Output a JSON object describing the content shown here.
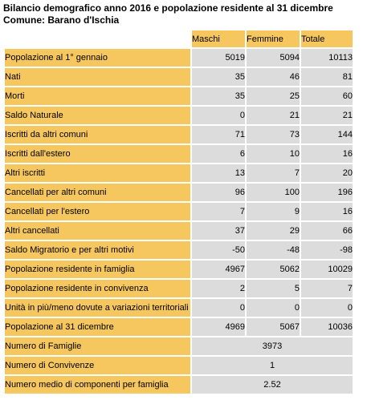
{
  "title": {
    "line1": "Bilancio demografico anno 2016 e popolazione residente al 31 dicembre",
    "line2": "Comune: Barano d'Ischia"
  },
  "columns": [
    "Maschi",
    "Femmine",
    "Totale"
  ],
  "colors": {
    "label_bg": "#f7c75f",
    "value_bg": "#dcdcdc"
  },
  "rows": [
    {
      "label": "Popolazione al 1° gennaio",
      "values": [
        "5019",
        "5094",
        "10113"
      ]
    },
    {
      "label": "Nati",
      "values": [
        "35",
        "46",
        "81"
      ]
    },
    {
      "label": "Morti",
      "values": [
        "35",
        "25",
        "60"
      ]
    },
    {
      "label": "Saldo Naturale",
      "values": [
        "0",
        "21",
        "21"
      ]
    },
    {
      "label": "Iscritti da altri comuni",
      "values": [
        "71",
        "73",
        "144"
      ]
    },
    {
      "label": "Iscritti dall'estero",
      "values": [
        "6",
        "10",
        "16"
      ]
    },
    {
      "label": "Altri iscritti",
      "values": [
        "13",
        "7",
        "20"
      ]
    },
    {
      "label": "Cancellati per altri comuni",
      "values": [
        "96",
        "100",
        "196"
      ]
    },
    {
      "label": "Cancellati per l'estero",
      "values": [
        "7",
        "9",
        "16"
      ]
    },
    {
      "label": "Altri cancellati",
      "values": [
        "37",
        "29",
        "66"
      ]
    },
    {
      "label": "Saldo Migratorio e per altri motivi",
      "values": [
        "-50",
        "-48",
        "-98"
      ]
    },
    {
      "label": "Popolazione residente in famiglia",
      "values": [
        "4967",
        "5062",
        "10029"
      ]
    },
    {
      "label": "Popolazione residente in convivenza",
      "values": [
        "2",
        "5",
        "7"
      ]
    },
    {
      "label": "Unità in più/meno dovute a variazioni territoriali",
      "values": [
        "0",
        "0",
        "0"
      ]
    },
    {
      "label": "Popolazione al 31 dicembre",
      "values": [
        "4969",
        "5067",
        "10036"
      ]
    }
  ],
  "summary": [
    {
      "label": "Numero di Famiglie",
      "value": "3973"
    },
    {
      "label": "Numero di Convivenze",
      "value": "1"
    },
    {
      "label": "Numero medio di componenti per famiglia",
      "value": "2.52"
    }
  ]
}
